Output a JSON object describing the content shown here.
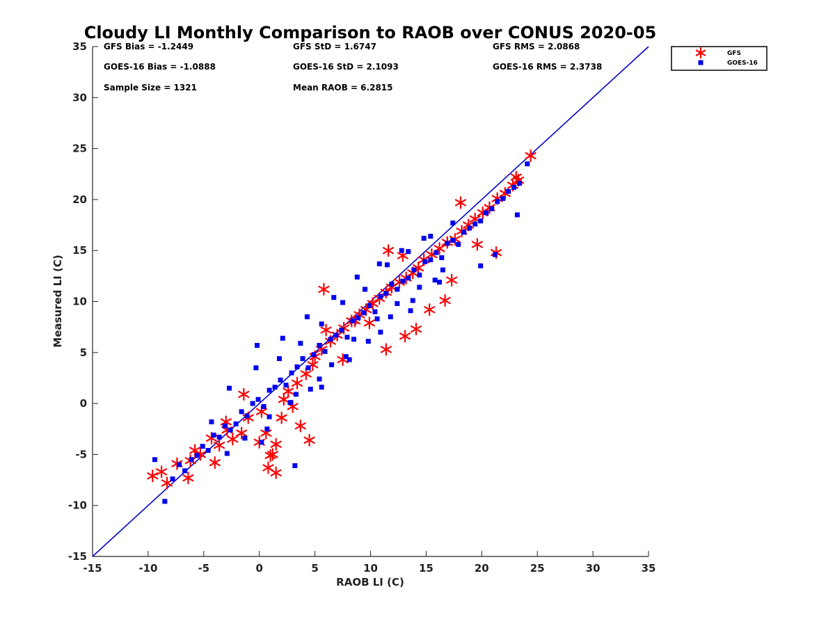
{
  "chart_data": {
    "type": "scatter",
    "title": "Cloudy LI Monthly Comparison to RAOB over CONUS 2020-05",
    "xlabel": "RAOB LI (C)",
    "ylabel": "Measured LI (C)",
    "xlim": [
      -15,
      35
    ],
    "ylim": [
      -15,
      35
    ],
    "xticks": [
      "-15",
      "-10",
      "-5",
      "0",
      "5",
      "10",
      "15",
      "20",
      "25",
      "30",
      "35"
    ],
    "yticks": [
      "-15",
      "-10",
      "-5",
      "0",
      "5",
      "10",
      "15",
      "20",
      "25",
      "30",
      "35"
    ],
    "grid": false,
    "legend_position": "outside-top-right",
    "reference_line": {
      "x": [
        -15,
        35
      ],
      "y": [
        -15,
        35
      ],
      "color": "#0000cc"
    },
    "stats": [
      "GFS Bias = -1.2449",
      "GFS StD = 1.6747",
      "GFS RMS = 2.0868",
      "GOES-16 Bias = -1.0888",
      "GOES-16 StD = 2.1093",
      "GOES-16 RMS = 2.3738",
      "Sample Size = 1321",
      "Mean RAOB = 6.2815"
    ],
    "series": [
      {
        "name": "GFS",
        "marker": "asterisk",
        "color": "#ff0000",
        "x": [
          -9.6,
          -8.8,
          -8.3,
          -7.4,
          -6.4,
          -6.2,
          -5.8,
          -5.3,
          -4.3,
          -4.0,
          -3.6,
          -2.9,
          -1.6,
          -1.0,
          0.2,
          0.8,
          1.2,
          1.5,
          2.2,
          2.6,
          3.4,
          4.2,
          4.8,
          5.0,
          5.6,
          6.4,
          7.0,
          7.6,
          8.3,
          9.0,
          9.6,
          10.2,
          10.8,
          11.4,
          11.9,
          12.6,
          13.2,
          13.8,
          14.3,
          14.8,
          15.5,
          16.2,
          16.9,
          17.6,
          18.2,
          18.8,
          19.4,
          20.1,
          20.7,
          21.4,
          22.1,
          22.8,
          23.1,
          23.3,
          24.4,
          11.4,
          11.6,
          12.9,
          14.1,
          16.7,
          18.1,
          19.6,
          21.3,
          1.0,
          0.6,
          1.5,
          3.7,
          4.5,
          5.8,
          7.5,
          6.0,
          8.6,
          9.9,
          13.1,
          15.3,
          17.3,
          2.0,
          3.0,
          0.0,
          -1.4,
          -2.4,
          -3.0
        ],
        "y": [
          -7.1,
          -6.7,
          -7.8,
          -5.9,
          -7.3,
          -5.6,
          -4.6,
          -5.0,
          -3.4,
          -5.8,
          -4.1,
          -2.6,
          -2.9,
          -1.4,
          -0.8,
          -6.3,
          -5.0,
          -6.8,
          0.4,
          1.2,
          2.0,
          2.9,
          3.8,
          4.6,
          5.3,
          6.1,
          6.7,
          7.4,
          8.1,
          8.7,
          9.2,
          9.8,
          10.3,
          10.9,
          11.4,
          11.9,
          12.3,
          12.8,
          13.3,
          14.1,
          14.6,
          15.2,
          15.8,
          16.1,
          16.9,
          17.5,
          18.1,
          18.7,
          19.2,
          20.1,
          20.6,
          21.4,
          22.2,
          21.9,
          24.3,
          5.3,
          15.0,
          14.5,
          7.3,
          10.1,
          19.7,
          15.6,
          14.8,
          -5.1,
          -2.9,
          -4.0,
          -2.2,
          -3.6,
          11.2,
          4.3,
          7.2,
          8.1,
          7.9,
          6.6,
          9.2,
          12.1,
          -1.4,
          -0.3,
          -3.8,
          0.9,
          -3.5,
          -1.8
        ]
      },
      {
        "name": "GOES-16",
        "marker": "square",
        "color": "#0000ee",
        "x": [
          -9.4,
          -8.5,
          -7.8,
          -7.2,
          -6.7,
          -6.1,
          -5.6,
          -5.1,
          -4.6,
          -4.1,
          -3.6,
          -3.1,
          -2.6,
          -2.1,
          -1.6,
          -1.1,
          -0.6,
          -0.1,
          0.4,
          0.9,
          1.4,
          1.9,
          2.4,
          2.9,
          3.4,
          3.9,
          4.4,
          4.9,
          5.4,
          5.9,
          6.4,
          6.9,
          7.4,
          7.9,
          8.4,
          8.9,
          9.4,
          9.9,
          10.4,
          10.9,
          11.4,
          11.9,
          12.4,
          12.9,
          13.4,
          13.9,
          14.4,
          14.9,
          15.4,
          15.9,
          16.4,
          16.9,
          17.4,
          17.9,
          18.4,
          18.9,
          19.4,
          19.9,
          20.4,
          20.9,
          21.4,
          21.9,
          22.4,
          22.9,
          23.4,
          24.1,
          -2.7,
          -1.3,
          -0.3,
          0.7,
          1.8,
          2.8,
          3.7,
          4.6,
          5.6,
          6.5,
          7.5,
          8.5,
          9.5,
          10.6,
          11.5,
          12.4,
          13.4,
          14.4,
          15.4,
          16.5,
          17.4,
          -0.2,
          0.9,
          2.1,
          3.3,
          4.3,
          5.4,
          6.7,
          7.8,
          8.8,
          9.8,
          10.8,
          11.8,
          12.8,
          13.8,
          14.8,
          15.8,
          -4.3,
          -2.9,
          0.2,
          3.2,
          5.6,
          8.1,
          10.9,
          13.6,
          16.2,
          19.9,
          21.2,
          23.2
        ],
        "y": [
          -5.5,
          -9.6,
          -7.4,
          -6.0,
          -6.6,
          -5.5,
          -5.1,
          -4.2,
          -4.6,
          -3.1,
          -3.3,
          -2.2,
          -2.6,
          -2.0,
          -0.8,
          -1.2,
          0.0,
          0.4,
          -0.3,
          1.3,
          1.6,
          2.3,
          1.8,
          3.0,
          3.6,
          4.4,
          3.5,
          4.8,
          5.7,
          5.1,
          6.3,
          6.7,
          7.2,
          6.5,
          8.1,
          8.4,
          8.9,
          9.6,
          9.0,
          10.5,
          10.8,
          11.7,
          11.2,
          12.0,
          12.3,
          13.1,
          12.6,
          13.9,
          14.1,
          14.8,
          14.3,
          15.7,
          16.0,
          15.6,
          16.8,
          17.2,
          17.6,
          17.9,
          18.7,
          19.1,
          19.8,
          20.1,
          20.8,
          21.2,
          21.6,
          23.5,
          1.5,
          -3.4,
          3.5,
          -2.5,
          4.4,
          0.1,
          5.9,
          1.4,
          7.8,
          3.8,
          9.9,
          6.3,
          11.2,
          8.3,
          13.6,
          9.8,
          14.9,
          11.4,
          16.4,
          13.1,
          17.7,
          5.7,
          -1.3,
          6.4,
          0.9,
          8.5,
          2.4,
          10.4,
          4.6,
          12.4,
          6.1,
          13.7,
          8.5,
          15.0,
          10.1,
          16.2,
          12.1,
          -1.8,
          -4.9,
          -3.8,
          -6.1,
          1.6,
          4.3,
          7.0,
          9.1,
          11.9,
          13.5,
          14.6,
          18.5
        ]
      }
    ]
  }
}
